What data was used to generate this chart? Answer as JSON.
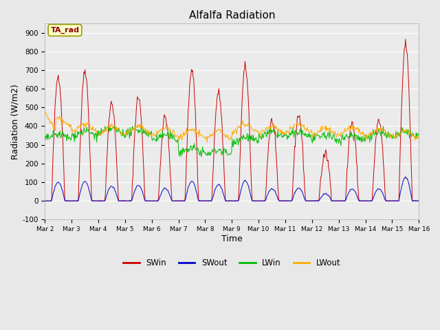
{
  "title": "Alfalfa Radiation",
  "xlabel": "Time",
  "ylabel": "Radiation (W/m2)",
  "ylim": [
    -100,
    950
  ],
  "xlim": [
    0,
    336
  ],
  "fig_bg_color": "#e8e8e8",
  "plot_bg_color": "#ebebeb",
  "colors": {
    "SWin": "#cc0000",
    "SWout": "#0000cc",
    "LWin": "#00bb00",
    "LWout": "#ffaa00"
  },
  "legend_label": "TA_rad",
  "xtick_labels": [
    "Mar 2",
    "Mar 3",
    "Mar 4",
    "Mar 5",
    "Mar 6",
    "Mar 7",
    "Mar 8",
    "Mar 9",
    "Mar 10",
    "Mar 11",
    "Mar 12",
    "Mar 13",
    "Mar 14",
    "Mar 15",
    "Mar 16"
  ],
  "xtick_positions": [
    0,
    24,
    48,
    72,
    96,
    120,
    144,
    168,
    192,
    216,
    240,
    264,
    288,
    312,
    336
  ],
  "ytick_labels": [
    "-100",
    "0",
    "100",
    "200",
    "300",
    "400",
    "500",
    "600",
    "700",
    "800",
    "900"
  ],
  "ytick_positions": [
    -100,
    0,
    100,
    200,
    300,
    400,
    500,
    600,
    700,
    800,
    900
  ]
}
